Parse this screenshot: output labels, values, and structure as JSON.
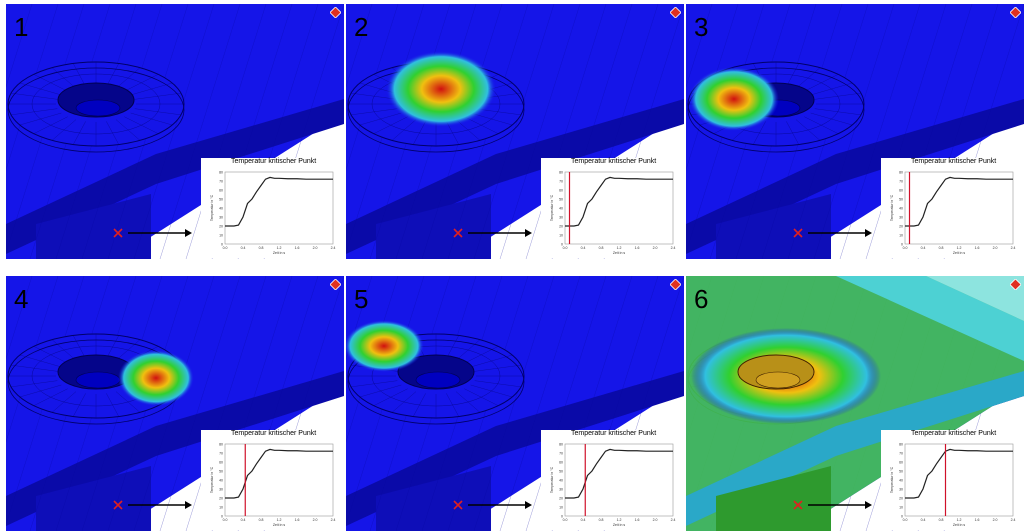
{
  "panels": [
    {
      "number": "1",
      "marker_t": null,
      "heat": "none"
    },
    {
      "number": "2",
      "marker_t": 0.1,
      "heat": "hole"
    },
    {
      "number": "3",
      "marker_t": 0.1,
      "heat": "hole-edge"
    },
    {
      "number": "4",
      "marker_t": 0.45,
      "heat": "right"
    },
    {
      "number": "5",
      "marker_t": 0.45,
      "heat": "left"
    },
    {
      "number": "6",
      "marker_t": 0.9,
      "heat": "full"
    }
  ],
  "chart_data": {
    "type": "line",
    "title": "Temperatur kritischer Punkt",
    "xlabel": "Zeit in s",
    "ylabel": "Temperatur in °C",
    "x": [
      0.0,
      0.2,
      0.3,
      0.4,
      0.5,
      0.6,
      0.7,
      0.8,
      0.9,
      1.0,
      1.1,
      1.2,
      1.4,
      1.6,
      1.8,
      2.0,
      2.2,
      2.4
    ],
    "y": [
      20,
      20,
      21,
      30,
      45,
      50,
      58,
      65,
      72,
      74,
      73,
      73,
      72.5,
      72.5,
      72,
      72,
      72,
      72
    ],
    "xlim": [
      0,
      2.4
    ],
    "ylim": [
      0,
      80
    ],
    "xticks": [
      "0.0",
      "0.4",
      "0.8",
      "1.2",
      "1.6",
      "2.0",
      "2.4"
    ],
    "yticks": [
      "0",
      "10",
      "20",
      "30",
      "40",
      "50",
      "60",
      "70",
      "80"
    ],
    "series_color": "#222222",
    "marker_color": "#d0102a"
  },
  "colors": {
    "background_blue": "#1515e8",
    "cross": "#e02020",
    "arrow": "#000000"
  }
}
